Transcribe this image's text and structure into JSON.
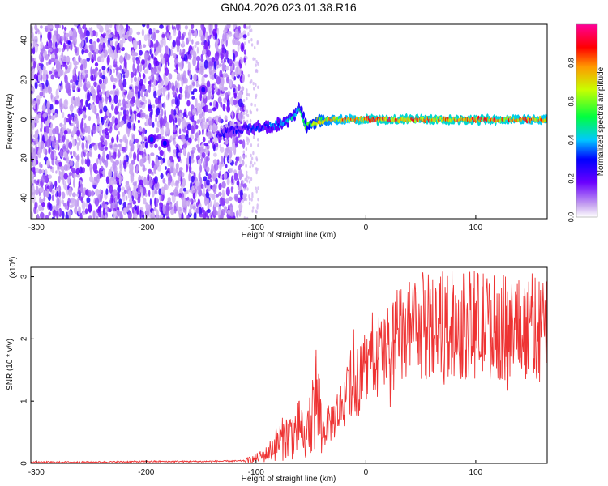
{
  "title": "GN04.2026.023.01.38.R16",
  "chart_data": [
    {
      "type": "heatmap",
      "title": "GN04.2026.023.01.38.R16",
      "xlabel": "Height of straight line (km)",
      "ylabel": "Frequency (Hz)",
      "xlim": [
        -305,
        165
      ],
      "ylim": [
        -50,
        48
      ],
      "xticks": [
        "-300",
        "-200",
        "-100",
        "0",
        "100"
      ],
      "yticks": [
        "-40",
        "-20",
        "0",
        "20",
        "40"
      ],
      "colorbar": {
        "label": "Normalized spectral amplitude",
        "range": [
          0,
          1
        ],
        "ticks": [
          "0.0",
          "0.2",
          "0.4",
          "0.6",
          "0.8"
        ]
      },
      "description_points": {
        "noise_region_x": [
          -305,
          -110
        ],
        "signal_track": {
          "x": [
            -135,
            -120,
            -100,
            -85,
            -75,
            -65,
            -60,
            -55,
            -45,
            -30,
            0,
            50,
            100,
            165
          ],
          "frequency": [
            -8,
            -5,
            -4,
            -3,
            -2,
            2,
            6,
            -3,
            -1,
            0,
            0,
            0,
            0,
            0
          ],
          "peak_amplitude": [
            0.3,
            0.3,
            0.35,
            0.4,
            0.45,
            0.5,
            0.55,
            0.6,
            0.75,
            0.85,
            0.95,
            0.95,
            0.95,
            0.9
          ]
        },
        "blobs": [
          {
            "x": -195,
            "frequency": -10,
            "amplitude": 0.32
          },
          {
            "x": -183,
            "frequency": -12,
            "amplitude": 0.3
          },
          {
            "x": -148,
            "frequency": 15,
            "amplitude": 0.25
          }
        ]
      }
    },
    {
      "type": "line",
      "xlabel": "Height of straight line (km)",
      "ylabel": "SNR (10 * v/v)",
      "ylabel_exponent": "(x10",
      "ylabel_exponent_power": "4",
      "ylabel_exponent_close": ")",
      "xlim": [
        -305,
        165
      ],
      "ylim": [
        0,
        3.15
      ],
      "xticks": [
        "-300",
        "-200",
        "-100",
        "0",
        "100"
      ],
      "yticks": [
        "0",
        "1",
        "2",
        "3"
      ],
      "color": "#ee3333",
      "series": [
        {
          "x": [
            -305,
            -250,
            -200,
            -150,
            -110,
            -100,
            -90,
            -80,
            -70,
            -60,
            -55,
            -50,
            -45,
            -40,
            -35,
            -30,
            -20,
            -10,
            0,
            10,
            20,
            30,
            40,
            50,
            60,
            70,
            80,
            90,
            100,
            110,
            120,
            130,
            140,
            150,
            165
          ],
          "y": [
            0.02,
            0.02,
            0.03,
            0.03,
            0.04,
            0.08,
            0.15,
            0.35,
            0.45,
            0.55,
            0.3,
            0.8,
            1.1,
            0.5,
            0.6,
            0.7,
            1.0,
            1.3,
            1.5,
            1.7,
            1.85,
            2.0,
            2.1,
            2.2,
            2.2,
            2.25,
            2.2,
            2.2,
            2.25,
            2.2,
            2.2,
            2.15,
            2.2,
            2.2,
            2.2
          ]
        }
      ]
    }
  ]
}
